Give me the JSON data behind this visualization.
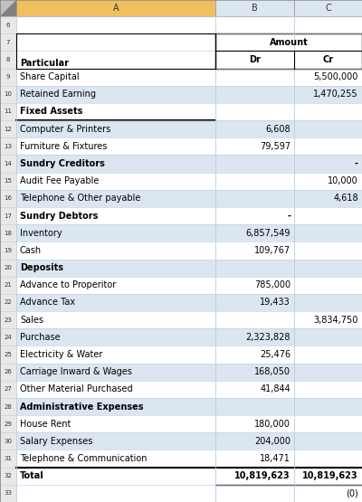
{
  "col_header_bg_a": "#f0c060",
  "col_header_bg_bc": "#dce6f1",
  "grid_line_color": "#b8cce4",
  "row_num_bg": "#e8e8e8",
  "fig_bg": "#ffffff",
  "font_size": 7.0,
  "rows": [
    {
      "row": 6,
      "label": "",
      "dr": "",
      "cr": "",
      "bold": false,
      "bg": "#ffffff"
    },
    {
      "row": 7,
      "label": "",
      "dr": "",
      "cr": "",
      "bold": false,
      "bg": "#ffffff",
      "amount_header": true
    },
    {
      "row": 8,
      "label": "Particular",
      "dr": "Dr",
      "cr": "Cr",
      "bold": true,
      "bg": "#ffffff",
      "particular_header": true
    },
    {
      "row": 9,
      "label": "Share Capital",
      "dr": "",
      "cr": "5,500,000",
      "bold": false,
      "bg": "#ffffff"
    },
    {
      "row": 10,
      "label": "Retained Earning",
      "dr": "",
      "cr": "1,470,255",
      "bold": false,
      "bg": "#dce6f1"
    },
    {
      "row": 11,
      "label": "Fixed Assets",
      "dr": "",
      "cr": "",
      "bold": true,
      "bg": "#ffffff",
      "thick_bottom": true
    },
    {
      "row": 12,
      "label": "Computer & Printers",
      "dr": "6,608",
      "cr": "",
      "bold": false,
      "bg": "#dce6f1"
    },
    {
      "row": 13,
      "label": "Furniture & Fixtures",
      "dr": "79,597",
      "cr": "",
      "bold": false,
      "bg": "#ffffff"
    },
    {
      "row": 14,
      "label": "Sundry Creditors",
      "dr": "",
      "cr": "-",
      "bold": true,
      "bg": "#dce6f1"
    },
    {
      "row": 15,
      "label": "Audit Fee Payable",
      "dr": "",
      "cr": "10,000",
      "bold": false,
      "bg": "#ffffff"
    },
    {
      "row": 16,
      "label": "Telephone & Other payable",
      "dr": "",
      "cr": "4,618",
      "bold": false,
      "bg": "#dce6f1"
    },
    {
      "row": 17,
      "label": "Sundry Debtors",
      "dr": "-",
      "cr": "",
      "bold": true,
      "bg": "#ffffff"
    },
    {
      "row": 18,
      "label": "Inventory",
      "dr": "6,857,549",
      "cr": "",
      "bold": false,
      "bg": "#dce6f1"
    },
    {
      "row": 19,
      "label": "Cash",
      "dr": "109,767",
      "cr": "",
      "bold": false,
      "bg": "#ffffff"
    },
    {
      "row": 20,
      "label": "Deposits",
      "dr": "",
      "cr": "",
      "bold": true,
      "bg": "#dce6f1"
    },
    {
      "row": 21,
      "label": "Advance to Properitor",
      "dr": "785,000",
      "cr": "",
      "bold": false,
      "bg": "#ffffff"
    },
    {
      "row": 22,
      "label": "Advance Tax",
      "dr": "19,433",
      "cr": "",
      "bold": false,
      "bg": "#dce6f1"
    },
    {
      "row": 23,
      "label": "Sales",
      "dr": "",
      "cr": "3,834,750",
      "bold": false,
      "bg": "#ffffff"
    },
    {
      "row": 24,
      "label": "Purchase",
      "dr": "2,323,828",
      "cr": "",
      "bold": false,
      "bg": "#dce6f1"
    },
    {
      "row": 25,
      "label": "Electricity & Water",
      "dr": "25,476",
      "cr": "",
      "bold": false,
      "bg": "#ffffff"
    },
    {
      "row": 26,
      "label": "Carriage Inward & Wages",
      "dr": "168,050",
      "cr": "",
      "bold": false,
      "bg": "#dce6f1"
    },
    {
      "row": 27,
      "label": "Other Material Purchased",
      "dr": "41,844",
      "cr": "",
      "bold": false,
      "bg": "#ffffff"
    },
    {
      "row": 28,
      "label": "Administrative Expenses",
      "dr": "",
      "cr": "",
      "bold": true,
      "bg": "#dce6f1"
    },
    {
      "row": 29,
      "label": "House Rent",
      "dr": "180,000",
      "cr": "",
      "bold": false,
      "bg": "#ffffff"
    },
    {
      "row": 30,
      "label": "Salary Expenses",
      "dr": "204,000",
      "cr": "",
      "bold": false,
      "bg": "#dce6f1"
    },
    {
      "row": 31,
      "label": "Telephone & Communication",
      "dr": "18,471",
      "cr": "",
      "bold": false,
      "bg": "#ffffff"
    },
    {
      "row": 32,
      "label": "Total",
      "dr": "10,819,623",
      "cr": "10,819,623",
      "bold": true,
      "bg": "#ffffff",
      "total_row": true
    },
    {
      "row": 33,
      "label": "",
      "dr": "",
      "cr": "(0)",
      "bold": false,
      "bg": "#ffffff"
    }
  ]
}
